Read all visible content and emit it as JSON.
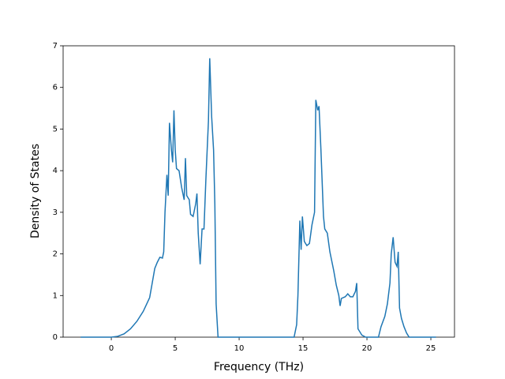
{
  "chart_data": {
    "type": "line",
    "xlabel": "Frequency (THz)",
    "ylabel": "Density of States",
    "xlim": [
      -3.77,
      26.85
    ],
    "ylim": [
      0,
      7
    ],
    "xticks": [
      0,
      5,
      10,
      15,
      20,
      25
    ],
    "yticks": [
      0,
      1,
      2,
      3,
      4,
      5,
      6,
      7
    ],
    "series": [
      {
        "color": "#1f77b4",
        "x": [
          -2.4,
          0,
          0.5,
          1,
          1.5,
          2,
          2.5,
          3,
          3.2,
          3.4,
          3.6,
          3.8,
          4.0,
          4.1,
          4.2,
          4.35,
          4.45,
          4.55,
          4.7,
          4.8,
          4.9,
          5.0,
          5.1,
          5.3,
          5.5,
          5.7,
          5.8,
          5.9,
          6.0,
          6.1,
          6.2,
          6.4,
          6.6,
          6.7,
          6.8,
          6.95,
          7.1,
          7.25,
          7.4,
          7.6,
          7.7,
          7.85,
          8.0,
          8.1,
          8.2,
          8.35,
          14.3,
          14.5,
          14.6,
          14.75,
          14.85,
          14.95,
          15.1,
          15.3,
          15.5,
          15.7,
          15.9,
          16.0,
          16.15,
          16.25,
          16.4,
          16.6,
          16.7,
          16.9,
          17.1,
          17.4,
          17.6,
          17.8,
          17.9,
          18.0,
          18.3,
          18.5,
          18.7,
          18.9,
          19.1,
          19.2,
          19.3,
          19.6,
          19.9,
          20.9,
          21.1,
          21.4,
          21.6,
          21.8,
          21.9,
          22.05,
          22.2,
          22.35,
          22.45,
          22.55,
          22.7,
          22.9,
          23.1,
          23.3,
          25.4
        ],
        "values": [
          0,
          0,
          0.02,
          0.08,
          0.2,
          0.38,
          0.62,
          0.95,
          1.3,
          1.65,
          1.8,
          1.92,
          1.9,
          2.05,
          3.0,
          3.9,
          3.4,
          5.15,
          4.5,
          4.2,
          5.45,
          4.5,
          4.05,
          4.0,
          3.6,
          3.3,
          4.3,
          3.4,
          3.35,
          3.3,
          2.95,
          2.9,
          3.2,
          3.45,
          2.5,
          1.75,
          2.6,
          2.6,
          3.8,
          5.2,
          6.7,
          5.3,
          4.5,
          3.2,
          0.8,
          0,
          0,
          0.3,
          1.0,
          2.8,
          2.1,
          2.9,
          2.3,
          2.2,
          2.25,
          2.7,
          3.0,
          5.7,
          5.45,
          5.55,
          4.5,
          2.9,
          2.6,
          2.5,
          2.05,
          1.6,
          1.25,
          1.0,
          0.75,
          0.93,
          0.97,
          1.04,
          0.97,
          0.97,
          1.1,
          1.3,
          0.2,
          0.05,
          0,
          0,
          0.25,
          0.5,
          0.8,
          1.3,
          2.0,
          2.4,
          1.8,
          1.7,
          2.05,
          0.7,
          0.45,
          0.25,
          0.1,
          0,
          0
        ]
      }
    ]
  }
}
